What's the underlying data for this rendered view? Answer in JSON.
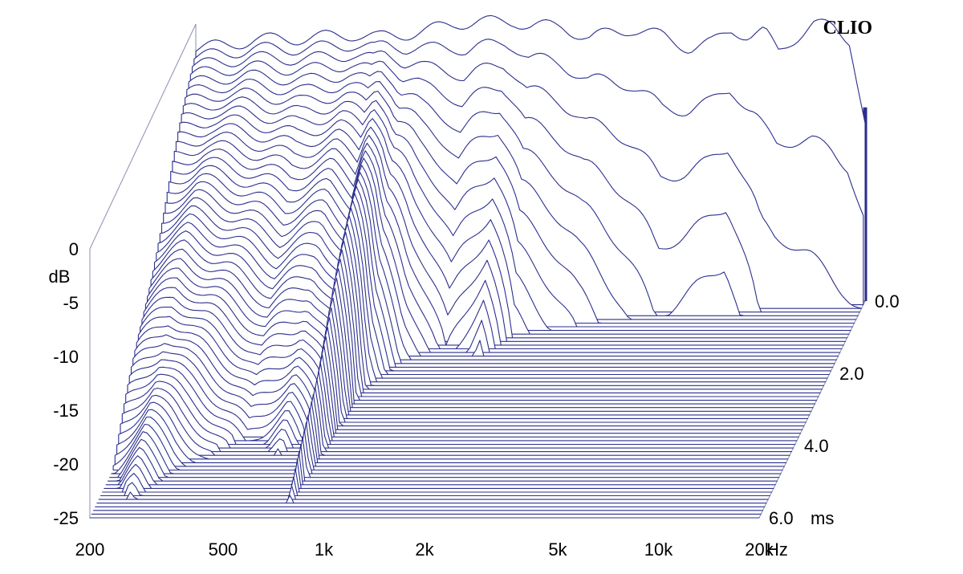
{
  "chart_data": {
    "type": "waterfall-csd",
    "brand": "CLIO",
    "x_axis": {
      "scale": "log",
      "range": [
        200,
        20000
      ],
      "ticks": [
        {
          "value": 200,
          "label": "200"
        },
        {
          "value": 500,
          "label": "500"
        },
        {
          "value": 1000,
          "label": "1k"
        },
        {
          "value": 2000,
          "label": "2k"
        },
        {
          "value": 5000,
          "label": "5k"
        },
        {
          "value": 10000,
          "label": "10k"
        },
        {
          "value": 20000,
          "label": "20k"
        }
      ],
      "unit": "Hz"
    },
    "y_axis": {
      "range": [
        -25,
        0
      ],
      "ticks": [
        {
          "value": 0,
          "label": "0"
        },
        {
          "value": -5,
          "label": "-5"
        },
        {
          "value": -10,
          "label": "-10"
        },
        {
          "value": -15,
          "label": "-15"
        },
        {
          "value": -20,
          "label": "-20"
        },
        {
          "value": -25,
          "label": "-25"
        }
      ],
      "unit": "dB"
    },
    "z_axis": {
      "range": [
        0,
        6
      ],
      "ticks": [
        {
          "value": 0,
          "label": "0.0"
        },
        {
          "value": 2,
          "label": "2.0"
        },
        {
          "value": 4,
          "label": "4.0"
        },
        {
          "value": 6,
          "label": "6.0"
        }
      ],
      "unit": "ms"
    },
    "slices": 60,
    "initial_response": [
      {
        "f": 200,
        "db": -1.5
      },
      {
        "f": 250,
        "db": -1.2
      },
      {
        "f": 300,
        "db": -0.7
      },
      {
        "f": 400,
        "db": -0.6
      },
      {
        "f": 500,
        "db": -0.4
      },
      {
        "f": 600,
        "db": -0.2
      },
      {
        "f": 700,
        "db": -0.5
      },
      {
        "f": 800,
        "db": -0.3
      },
      {
        "f": 1000,
        "db": 0.2
      },
      {
        "f": 1200,
        "db": 0.8
      },
      {
        "f": 1400,
        "db": 1.0
      },
      {
        "f": 1600,
        "db": 0.9
      },
      {
        "f": 1800,
        "db": 1.0
      },
      {
        "f": 2000,
        "db": 0.6
      },
      {
        "f": 2500,
        "db": 0.5
      },
      {
        "f": 3000,
        "db": -0.6
      },
      {
        "f": 3500,
        "db": 0.0
      },
      {
        "f": 4000,
        "db": 0.3
      },
      {
        "f": 5000,
        "db": -0.4
      },
      {
        "f": 6000,
        "db": -1.5
      },
      {
        "f": 7000,
        "db": -1.0
      },
      {
        "f": 8000,
        "db": 0.3
      },
      {
        "f": 9000,
        "db": -0.4
      },
      {
        "f": 10000,
        "db": 0.0
      },
      {
        "f": 11000,
        "db": -1.8
      },
      {
        "f": 12000,
        "db": -0.8
      },
      {
        "f": 14000,
        "db": 0.7
      },
      {
        "f": 16000,
        "db": 0.5
      },
      {
        "f": 18000,
        "db": -0.7
      },
      {
        "f": 20000,
        "db": -8.5
      }
    ],
    "decay_profile": [
      {
        "f": 200,
        "decay_ms": 4.8
      },
      {
        "f": 250,
        "decay_ms": 5.6
      },
      {
        "f": 300,
        "decay_ms": 4.9
      },
      {
        "f": 450,
        "decay_ms": 3.8
      },
      {
        "f": 600,
        "decay_ms": 4.3
      },
      {
        "f": 700,
        "decay_ms": 3.6
      },
      {
        "f": 750,
        "decay_ms": 5.8
      },
      {
        "f": 850,
        "decay_ms": 2.6
      },
      {
        "f": 1000,
        "decay_ms": 1.8
      },
      {
        "f": 1300,
        "decay_ms": 1.2
      },
      {
        "f": 1700,
        "decay_ms": 1.6
      },
      {
        "f": 2000,
        "decay_ms": 1.0
      },
      {
        "f": 3000,
        "decay_ms": 0.7
      },
      {
        "f": 5000,
        "decay_ms": 0.4
      },
      {
        "f": 8000,
        "decay_ms": 0.5
      },
      {
        "f": 10000,
        "decay_ms": 0.3
      },
      {
        "f": 20000,
        "decay_ms": 0.2
      }
    ],
    "colors": {
      "line": "#2b2f8c",
      "floor": "#2b2f8c",
      "frame": "#8a8fb0",
      "text": "#000000"
    }
  }
}
